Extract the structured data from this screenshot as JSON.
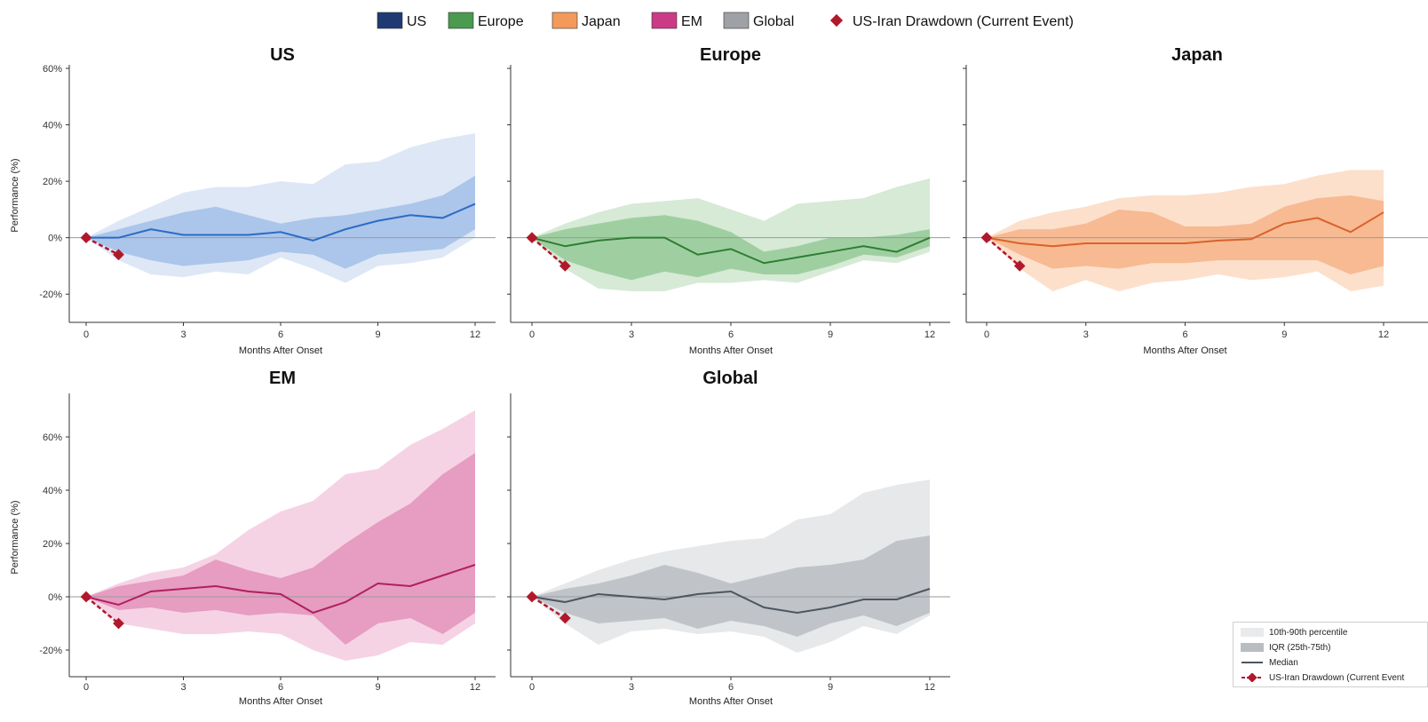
{
  "legend": {
    "items": [
      {
        "label": "US",
        "color": "#1f3a73"
      },
      {
        "label": "Europe",
        "color": "#4a9a4f"
      },
      {
        "label": "Japan",
        "color": "#f39a5a"
      },
      {
        "label": "EM",
        "color": "#cc3a86"
      },
      {
        "label": "Global",
        "color": "#9ea2a6"
      }
    ],
    "event_label": "US-Iran Drawdown (Current Event)",
    "event_color": "#b2182b"
  },
  "band_legend": {
    "p10_90": "10th-90th percentile",
    "iqr": "IQR (25th-75th)",
    "median": "Median",
    "event": "US-Iran Drawdown (Current Event"
  },
  "chart_data": [
    {
      "type": "area",
      "title": "US",
      "xlabel": "Months After Onset",
      "ylabel": "Performance (%)",
      "xlim": [
        0,
        12
      ],
      "ylim": [
        -30,
        60
      ],
      "yticks": [
        -20,
        0,
        20,
        40,
        60
      ],
      "ytick_labels": [
        "-20%",
        "0%",
        "20%",
        "40%",
        "60%"
      ],
      "xticks": [
        0,
        3,
        6,
        9,
        12
      ],
      "colors": {
        "line": "#2b6cc4",
        "iqr": "#9bb9e6",
        "p10_90": "#dde7f6"
      },
      "x": [
        0,
        1,
        2,
        3,
        4,
        5,
        6,
        7,
        8,
        9,
        10,
        11,
        12
      ],
      "median": [
        0,
        0,
        3,
        1,
        1,
        1,
        2,
        -1,
        3,
        6,
        8,
        7,
        12
      ],
      "q25": [
        0,
        -5,
        -8,
        -10,
        -9,
        -8,
        -5,
        -6,
        -11,
        -6,
        -5,
        -4,
        3
      ],
      "q75": [
        0,
        3,
        6,
        9,
        11,
        8,
        5,
        7,
        8,
        10,
        12,
        15,
        22
      ],
      "p10": [
        0,
        -8,
        -13,
        -14,
        -12,
        -13,
        -7,
        -11,
        -16,
        -10,
        -9,
        -7,
        0
      ],
      "p90": [
        0,
        6,
        11,
        16,
        18,
        18,
        20,
        19,
        26,
        27,
        32,
        35,
        37
      ],
      "event": [
        [
          0,
          0
        ],
        [
          1,
          -6
        ]
      ]
    },
    {
      "type": "area",
      "title": "Europe",
      "xlabel": "Months After Onset",
      "ylabel": "",
      "xlim": [
        0,
        12
      ],
      "ylim": [
        -30,
        60
      ],
      "yticks": [
        -20,
        0,
        20,
        40,
        60
      ],
      "ytick_labels": [],
      "xticks": [
        0,
        3,
        6,
        9,
        12
      ],
      "colors": {
        "line": "#2f7d32",
        "iqr": "#8cc68f",
        "p10_90": "#d6ead6"
      },
      "x": [
        0,
        1,
        2,
        3,
        4,
        5,
        6,
        7,
        8,
        9,
        10,
        11,
        12
      ],
      "median": [
        0,
        -3,
        -1,
        0,
        0,
        -6,
        -4,
        -9,
        -7,
        -5,
        -3,
        -5,
        0
      ],
      "q25": [
        0,
        -8,
        -12,
        -15,
        -12,
        -14,
        -11,
        -13,
        -13,
        -10,
        -6,
        -7,
        -3
      ],
      "q75": [
        0,
        3,
        5,
        7,
        8,
        6,
        2,
        -5,
        -3,
        0,
        0,
        1,
        3
      ],
      "p10": [
        0,
        -11,
        -18,
        -19,
        -19,
        -16,
        -16,
        -15,
        -16,
        -12,
        -8,
        -9,
        -5
      ],
      "p90": [
        0,
        5,
        9,
        12,
        13,
        14,
        10,
        6,
        12,
        13,
        14,
        18,
        21
      ],
      "event": [
        [
          0,
          0
        ],
        [
          1,
          -10
        ]
      ]
    },
    {
      "type": "area",
      "title": "Japan",
      "xlabel": "Months After Onset",
      "ylabel": "",
      "xlim": [
        0,
        12
      ],
      "ylim": [
        -30,
        60
      ],
      "yticks": [
        -20,
        0,
        20,
        40,
        60
      ],
      "ytick_labels": [],
      "xticks": [
        0,
        3,
        6,
        9,
        12
      ],
      "colors": {
        "line": "#d9622a",
        "iqr": "#f6ae80",
        "p10_90": "#fce0cc"
      },
      "x": [
        0,
        1,
        2,
        3,
        4,
        5,
        6,
        7,
        8,
        9,
        10,
        11,
        12
      ],
      "median": [
        0,
        -2,
        -3,
        -2,
        -2,
        -2,
        -2,
        -1,
        -0.5,
        5,
        7,
        2,
        9
      ],
      "q25": [
        0,
        -6,
        -11,
        -10,
        -11,
        -9,
        -9,
        -8,
        -8,
        -8,
        -8,
        -13,
        -10
      ],
      "q75": [
        0,
        3,
        3,
        5,
        10,
        9,
        4,
        4,
        5,
        11,
        14,
        15,
        13
      ],
      "p10": [
        0,
        -11,
        -19,
        -15,
        -19,
        -16,
        -15,
        -13,
        -15,
        -14,
        -12,
        -19,
        -17
      ],
      "p90": [
        0,
        6,
        9,
        11,
        14,
        15,
        15,
        16,
        18,
        19,
        22,
        24,
        24
      ],
      "event": [
        [
          0,
          0
        ],
        [
          1,
          -10
        ]
      ]
    },
    {
      "type": "area",
      "title": "EM",
      "xlabel": "Months After Onset",
      "ylabel": "Performance (%)",
      "xlim": [
        0,
        12
      ],
      "ylim": [
        -30,
        75
      ],
      "yticks": [
        -20,
        0,
        20,
        40,
        60
      ],
      "ytick_labels": [
        "-20%",
        "0%",
        "20%",
        "40%",
        "60%"
      ],
      "xticks": [
        0,
        3,
        6,
        9,
        12
      ],
      "colors": {
        "line": "#b0205e",
        "iqr": "#e28ab6",
        "p10_90": "#f5d3e4"
      },
      "x": [
        0,
        1,
        2,
        3,
        4,
        5,
        6,
        7,
        8,
        9,
        10,
        11,
        12
      ],
      "median": [
        0,
        -3,
        2,
        3,
        4,
        2,
        1,
        -6,
        -2,
        5,
        4,
        8,
        12
      ],
      "q25": [
        0,
        -5,
        -4,
        -6,
        -5,
        -7,
        -6,
        -7,
        -18,
        -10,
        -8,
        -14,
        -6
      ],
      "q75": [
        0,
        4,
        6,
        8,
        14,
        10,
        7,
        11,
        20,
        28,
        35,
        46,
        54
      ],
      "p10": [
        0,
        -10,
        -12,
        -14,
        -14,
        -13,
        -14,
        -20,
        -24,
        -22,
        -17,
        -18,
        -10
      ],
      "p90": [
        0,
        5,
        9,
        11,
        16,
        25,
        32,
        36,
        46,
        48,
        57,
        63,
        70
      ],
      "event": [
        [
          0,
          0
        ],
        [
          1,
          -10
        ]
      ]
    },
    {
      "type": "area",
      "title": "Global",
      "xlabel": "Months After Onset",
      "ylabel": "",
      "xlim": [
        0,
        12
      ],
      "ylim": [
        -30,
        75
      ],
      "yticks": [
        -20,
        0,
        20,
        40,
        60
      ],
      "ytick_labels": [],
      "xticks": [
        0,
        3,
        6,
        9,
        12
      ],
      "colors": {
        "line": "#4d565e",
        "iqr": "#b3b8bd",
        "p10_90": "#e6e8ea"
      },
      "x": [
        0,
        1,
        2,
        3,
        4,
        5,
        6,
        7,
        8,
        9,
        10,
        11,
        12
      ],
      "median": [
        0,
        -2,
        1,
        0,
        -1,
        1,
        2,
        -4,
        -6,
        -4,
        -1,
        -1,
        3
      ],
      "q25": [
        0,
        -6,
        -10,
        -9,
        -8,
        -12,
        -9,
        -11,
        -15,
        -10,
        -7,
        -11,
        -6
      ],
      "q75": [
        0,
        3,
        5,
        8,
        12,
        9,
        5,
        8,
        11,
        12,
        14,
        21,
        23
      ],
      "p10": [
        0,
        -10,
        -18,
        -13,
        -12,
        -14,
        -13,
        -15,
        -21,
        -17,
        -11,
        -14,
        -7
      ],
      "p90": [
        0,
        5,
        10,
        14,
        17,
        19,
        21,
        22,
        29,
        31,
        39,
        42,
        44
      ],
      "event": [
        [
          0,
          0
        ],
        [
          1,
          -8
        ]
      ]
    }
  ]
}
